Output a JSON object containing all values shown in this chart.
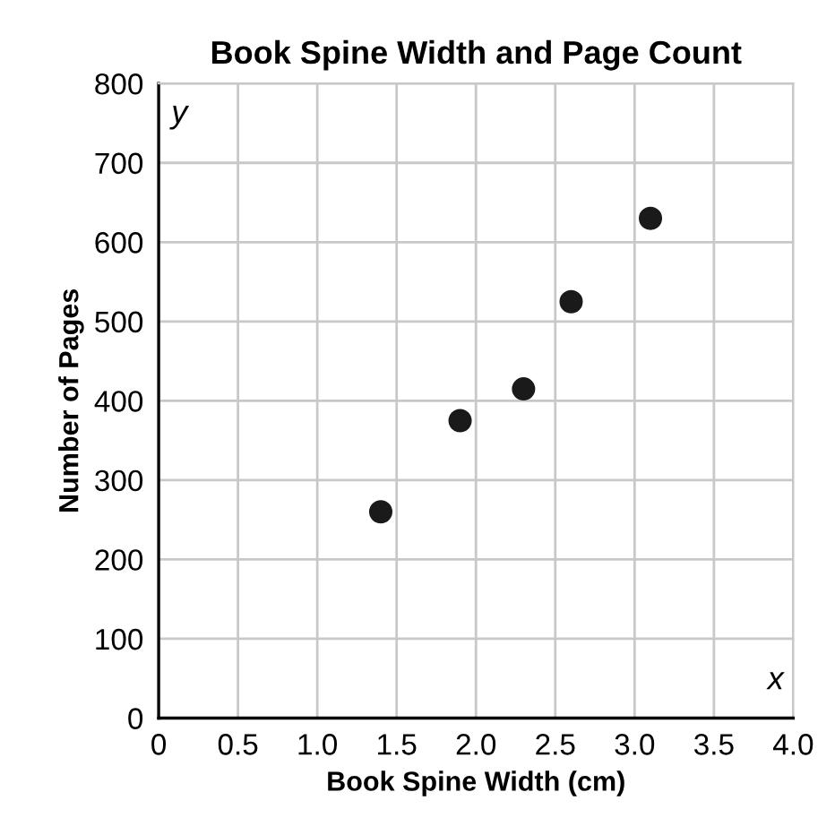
{
  "chart_data": {
    "type": "scatter",
    "title": "Book Spine Width and Page Count",
    "xlabel": "Book Spine Width (cm)",
    "ylabel": "Number of Pages",
    "x": [
      1.4,
      1.9,
      2.3,
      2.6,
      3.1
    ],
    "values": [
      260,
      375,
      415,
      525,
      630
    ],
    "color": "#1a1a1a",
    "marker": "circle",
    "xlim": [
      0,
      4.0
    ],
    "ylim": [
      0,
      800
    ],
    "xticks": [
      0,
      {
        "value": 0.5,
        "label": "0.5"
      },
      {
        "value": 1.0,
        "label": "1.0"
      },
      {
        "value": 1.5,
        "label": "1.5"
      },
      {
        "value": 2.0,
        "label": "2.0"
      },
      {
        "value": 2.5,
        "label": "2.5"
      },
      {
        "value": 3.0,
        "label": "3.0"
      },
      {
        "value": 3.5,
        "label": "3.5"
      },
      {
        "value": 4.0,
        "label": "4.0"
      }
    ],
    "yticks": [
      0,
      100,
      200,
      300,
      400,
      500,
      600,
      700,
      800
    ],
    "annotations": [
      "x",
      "y"
    ],
    "grid": true
  }
}
